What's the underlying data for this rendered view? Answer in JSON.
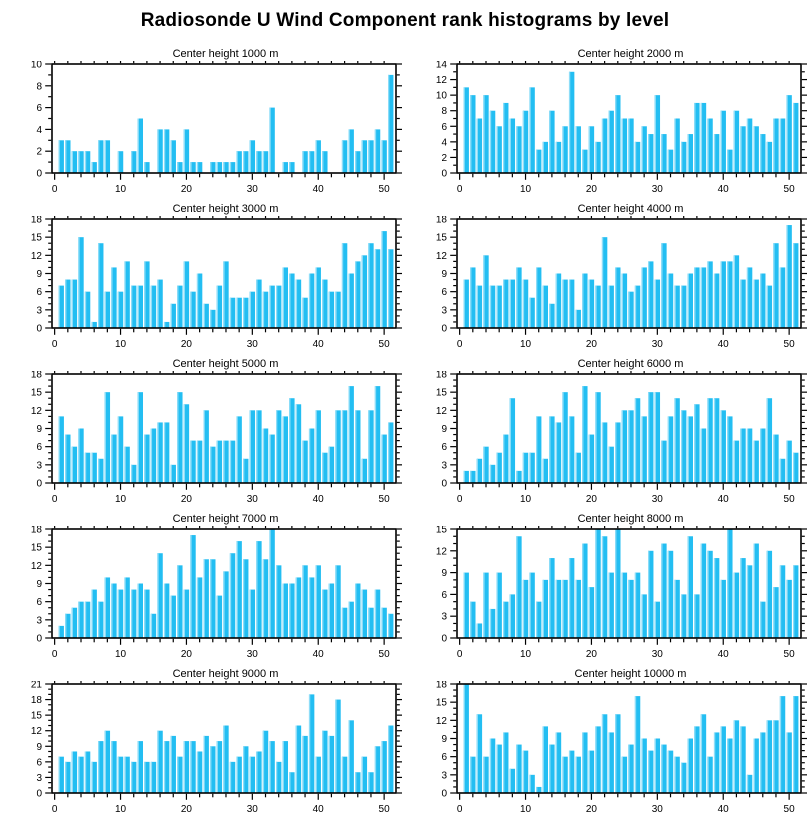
{
  "page_title": "Radiosonde U Wind Component rank histograms by level",
  "style": {
    "bar_color": "#23BEF2",
    "bar_highlight": "#8EDDF8",
    "axis_color": "#000000",
    "background": "#FFFFFF"
  },
  "axes": {
    "x_major_ticks": [
      0,
      10,
      20,
      30,
      40,
      50
    ],
    "x_minor_step": 2,
    "x_range": [
      -0.4,
      51.8
    ],
    "y_minor_step": 1
  },
  "chart_data": [
    {
      "type": "bar",
      "title": "Center height 1000 m",
      "ylim": [
        0,
        10
      ],
      "ytick_step": 2,
      "xlabel": "",
      "ylabel": "",
      "categories_note": "rank bins 1-51",
      "values": [
        3,
        3,
        2,
        2,
        2,
        1,
        3,
        3,
        0,
        2,
        0,
        2,
        5,
        1,
        0,
        4,
        4,
        3,
        1,
        4,
        1,
        1,
        0,
        1,
        1,
        1,
        1,
        2,
        2,
        3,
        2,
        2,
        6,
        0,
        1,
        1,
        0,
        2,
        2,
        3,
        2,
        0,
        0,
        3,
        4,
        2,
        3,
        3,
        4,
        3,
        9
      ]
    },
    {
      "type": "bar",
      "title": "Center height 2000 m",
      "ylim": [
        0,
        14
      ],
      "ytick_step": 2,
      "values": [
        11,
        10,
        7,
        10,
        8,
        6,
        9,
        7,
        6,
        8,
        11,
        3,
        4,
        8,
        4,
        6,
        13,
        6,
        3,
        6,
        4,
        7,
        8,
        10,
        7,
        7,
        4,
        6,
        5,
        10,
        5,
        3,
        7,
        4,
        5,
        9,
        9,
        7,
        5,
        8,
        3,
        8,
        6,
        7,
        6,
        5,
        4,
        7,
        7,
        10,
        9
      ]
    },
    {
      "type": "bar",
      "title": "Center height 3000 m",
      "ylim": [
        0,
        18
      ],
      "ytick_step": 3,
      "values": [
        7,
        8,
        8,
        15,
        6,
        1,
        14,
        6,
        10,
        6,
        11,
        7,
        7,
        11,
        7,
        8,
        1,
        4,
        7,
        11,
        6,
        9,
        4,
        3,
        7,
        11,
        5,
        5,
        5,
        6,
        8,
        6,
        7,
        7,
        10,
        9,
        8,
        5,
        9,
        10,
        8,
        6,
        6,
        14,
        9,
        11,
        12,
        14,
        13,
        16,
        13
      ]
    },
    {
      "type": "bar",
      "title": "Center height 4000 m",
      "ylim": [
        0,
        18
      ],
      "ytick_step": 3,
      "values": [
        8,
        10,
        7,
        12,
        7,
        7,
        8,
        8,
        10,
        8,
        5,
        10,
        7,
        4,
        9,
        8,
        8,
        3,
        9,
        8,
        7,
        15,
        7,
        10,
        9,
        6,
        7,
        10,
        11,
        8,
        14,
        9,
        7,
        7,
        9,
        10,
        10,
        11,
        9,
        11,
        11,
        12,
        8,
        10,
        8,
        9,
        7,
        14,
        10,
        17,
        14
      ]
    },
    {
      "type": "bar",
      "title": "Center height 5000 m",
      "ylim": [
        0,
        18
      ],
      "ytick_step": 3,
      "values": [
        11,
        8,
        6,
        9,
        5,
        5,
        4,
        15,
        8,
        11,
        6,
        3,
        15,
        8,
        9,
        10,
        10,
        3,
        15,
        13,
        7,
        7,
        12,
        6,
        7,
        7,
        7,
        11,
        4,
        12,
        12,
        9,
        8,
        12,
        11,
        14,
        13,
        7,
        9,
        12,
        5,
        6,
        12,
        12,
        16,
        12,
        4,
        12,
        16,
        8,
        10
      ]
    },
    {
      "type": "bar",
      "title": "Center height 6000 m",
      "ylim": [
        0,
        18
      ],
      "ytick_step": 3,
      "values": [
        2,
        2,
        4,
        6,
        3,
        5,
        8,
        14,
        2,
        5,
        5,
        11,
        4,
        11,
        10,
        15,
        11,
        5,
        16,
        8,
        15,
        10,
        6,
        10,
        12,
        12,
        14,
        11,
        15,
        15,
        7,
        11,
        14,
        12,
        11,
        13,
        9,
        14,
        14,
        12,
        11,
        7,
        9,
        9,
        7,
        9,
        14,
        8,
        4,
        7,
        5
      ]
    },
    {
      "type": "bar",
      "title": "Center height 7000 m",
      "ylim": [
        0,
        18
      ],
      "ytick_step": 3,
      "values": [
        2,
        4,
        5,
        6,
        6,
        8,
        6,
        10,
        9,
        8,
        10,
        8,
        9,
        8,
        4,
        14,
        9,
        7,
        12,
        8,
        17,
        10,
        13,
        13,
        7,
        11,
        14,
        16,
        13,
        8,
        16,
        13,
        18,
        12,
        9,
        9,
        10,
        12,
        10,
        12,
        8,
        9,
        12,
        5,
        6,
        9,
        8,
        5,
        8,
        5,
        4
      ]
    },
    {
      "type": "bar",
      "title": "Center height 8000 m",
      "ylim": [
        0,
        15
      ],
      "ytick_step": 3,
      "values": [
        9,
        5,
        2,
        9,
        4,
        9,
        5,
        6,
        14,
        8,
        9,
        5,
        8,
        11,
        8,
        8,
        11,
        8,
        13,
        7,
        15,
        14,
        9,
        15,
        9,
        8,
        9,
        6,
        12,
        5,
        13,
        12,
        8,
        6,
        14,
        6,
        13,
        12,
        11,
        8,
        15,
        9,
        11,
        10,
        13,
        5,
        12,
        7,
        10,
        8,
        10
      ]
    },
    {
      "type": "bar",
      "title": "Center height 9000 m",
      "ylim": [
        0,
        21
      ],
      "ytick_step": 3,
      "values": [
        7,
        6,
        8,
        7,
        8,
        6,
        10,
        12,
        10,
        7,
        7,
        6,
        10,
        6,
        6,
        12,
        10,
        11,
        7,
        10,
        10,
        8,
        11,
        9,
        10,
        13,
        6,
        7,
        9,
        7,
        8,
        12,
        10,
        6,
        10,
        4,
        13,
        11,
        19,
        7,
        12,
        11,
        18,
        7,
        14,
        4,
        7,
        4,
        9,
        10,
        13
      ]
    },
    {
      "type": "bar",
      "title": "Center height 10000 m",
      "ylim": [
        0,
        18
      ],
      "ytick_step": 3,
      "values": [
        18,
        6,
        13,
        6,
        9,
        8,
        10,
        4,
        8,
        7,
        3,
        1,
        11,
        8,
        10,
        6,
        7,
        6,
        10,
        7,
        11,
        13,
        10,
        13,
        6,
        8,
        16,
        9,
        7,
        9,
        8,
        7,
        6,
        5,
        9,
        11,
        13,
        6,
        10,
        11,
        9,
        12,
        11,
        3,
        9,
        10,
        12,
        12,
        16,
        10,
        16
      ]
    }
  ]
}
